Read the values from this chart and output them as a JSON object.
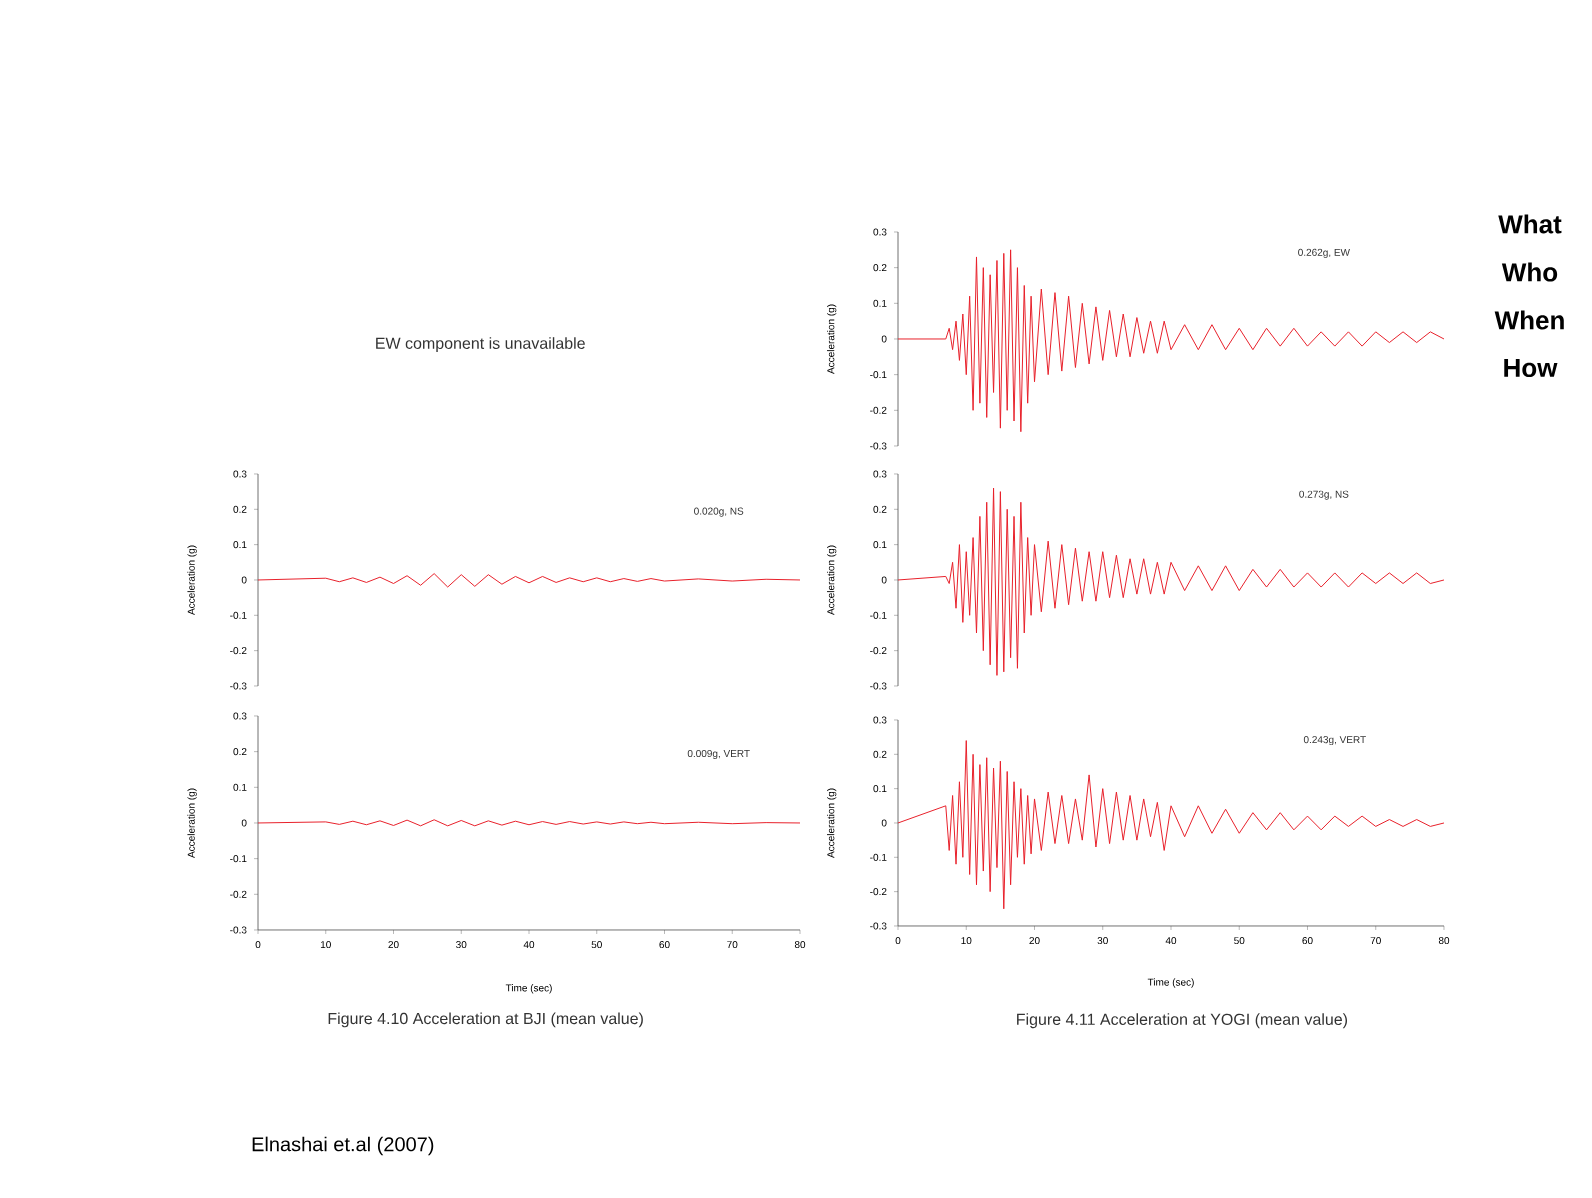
{
  "chart_data": [
    {
      "type": "line",
      "ylabel": "Acceleration (g)",
      "xlim": [
        0,
        80
      ],
      "ylim": [
        -0.3,
        0.3
      ],
      "yticks": [
        0.3,
        0.2,
        0.1,
        0,
        -0.1,
        -0.2,
        -0.3
      ],
      "tick_labels": "y",
      "color": "#e8202a",
      "x": [
        0,
        10,
        12,
        14,
        16,
        18,
        20,
        22,
        24,
        26,
        28,
        30,
        32,
        34,
        36,
        38,
        40,
        42,
        44,
        46,
        48,
        50,
        52,
        54,
        56,
        58,
        60,
        65,
        70,
        75,
        80
      ],
      "values": [
        0,
        0.005,
        -0.005,
        0.006,
        -0.007,
        0.008,
        -0.01,
        0.012,
        -0.015,
        0.018,
        -0.02,
        0.015,
        -0.018,
        0.015,
        -0.012,
        0.01,
        -0.008,
        0.01,
        -0.007,
        0.006,
        -0.005,
        0.006,
        -0.005,
        0.004,
        -0.004,
        0.004,
        -0.003,
        0.003,
        -0.003,
        0.002,
        0
      ],
      "annotations": [
        "0.020g, NS",
        "EW component is unavailable"
      ]
    },
    {
      "type": "line",
      "xlabel": "Time (sec)",
      "ylabel": "Acceleration (g)",
      "xlim": [
        0,
        80
      ],
      "ylim": [
        -0.3,
        0.3
      ],
      "xticks": [
        0,
        10,
        20,
        30,
        40,
        50,
        60,
        70,
        80
      ],
      "yticks": [
        0.3,
        0.2,
        0.1,
        0,
        -0.1,
        -0.2,
        -0.3
      ],
      "color": "#e8202a",
      "x": [
        0,
        10,
        12,
        14,
        16,
        18,
        20,
        22,
        24,
        26,
        28,
        30,
        32,
        34,
        36,
        38,
        40,
        42,
        44,
        46,
        48,
        50,
        52,
        54,
        56,
        58,
        60,
        65,
        70,
        75,
        80
      ],
      "values": [
        0,
        0.003,
        -0.004,
        0.005,
        -0.005,
        0.006,
        -0.007,
        0.008,
        -0.008,
        0.009,
        -0.008,
        0.007,
        -0.008,
        0.006,
        -0.006,
        0.005,
        -0.005,
        0.004,
        -0.004,
        0.004,
        -0.003,
        0.003,
        -0.003,
        0.003,
        -0.002,
        0.002,
        -0.002,
        0.002,
        -0.002,
        0.001,
        0
      ],
      "annotations": [
        "0.009g, VERT",
        "Figure 4.10  Acceleration at BJI (mean value)"
      ]
    },
    {
      "type": "line",
      "ylabel": "Acceleration (g)",
      "xlim": [
        0,
        80
      ],
      "ylim": [
        -0.3,
        0.3
      ],
      "yticks": [
        0.3,
        0.2,
        0.1,
        0,
        -0.1,
        -0.2,
        -0.3
      ],
      "tick_labels": "y",
      "color": "#e8202a",
      "x": [
        0,
        7,
        7.5,
        8,
        8.5,
        9,
        9.5,
        10,
        10.5,
        11,
        11.5,
        12,
        12.5,
        13,
        13.5,
        14,
        14.5,
        15,
        15.5,
        16,
        16.5,
        17,
        17.5,
        18,
        18.5,
        19,
        19.5,
        20,
        21,
        22,
        23,
        24,
        25,
        26,
        27,
        28,
        29,
        30,
        31,
        32,
        33,
        34,
        35,
        36,
        37,
        38,
        39,
        40,
        42,
        44,
        46,
        48,
        50,
        52,
        54,
        56,
        58,
        60,
        62,
        64,
        66,
        68,
        70,
        72,
        74,
        76,
        78,
        80
      ],
      "values": [
        0,
        0,
        0.03,
        -0.03,
        0.05,
        -0.06,
        0.07,
        -0.1,
        0.12,
        -0.2,
        0.23,
        -0.18,
        0.2,
        -0.22,
        0.18,
        -0.15,
        0.22,
        -0.25,
        0.24,
        -0.2,
        0.25,
        -0.23,
        0.2,
        -0.26,
        0.15,
        -0.18,
        0.12,
        -0.12,
        0.14,
        -0.1,
        0.13,
        -0.09,
        0.12,
        -0.08,
        0.1,
        -0.07,
        0.09,
        -0.06,
        0.08,
        -0.05,
        0.07,
        -0.05,
        0.06,
        -0.04,
        0.05,
        -0.04,
        0.05,
        -0.03,
        0.04,
        -0.03,
        0.04,
        -0.03,
        0.03,
        -0.03,
        0.03,
        -0.02,
        0.03,
        -0.02,
        0.02,
        -0.02,
        0.02,
        -0.02,
        0.02,
        -0.01,
        0.02,
        -0.01,
        0.02,
        0
      ],
      "annotations": [
        "0.262g, EW"
      ]
    },
    {
      "type": "line",
      "ylabel": "Acceleration (g)",
      "xlim": [
        0,
        80
      ],
      "ylim": [
        -0.3,
        0.3
      ],
      "yticks": [
        0.3,
        0.2,
        0.1,
        0,
        -0.1,
        -0.2,
        -0.3
      ],
      "tick_labels": "y",
      "color": "#e8202a",
      "x": [
        0,
        7,
        7.5,
        8,
        8.5,
        9,
        9.5,
        10,
        10.5,
        11,
        11.5,
        12,
        12.5,
        13,
        13.5,
        14,
        14.5,
        15,
        15.5,
        16,
        16.5,
        17,
        17.5,
        18,
        18.5,
        19,
        19.5,
        20,
        21,
        22,
        23,
        24,
        25,
        26,
        27,
        28,
        29,
        30,
        31,
        32,
        33,
        34,
        35,
        36,
        37,
        38,
        39,
        40,
        42,
        44,
        46,
        48,
        50,
        52,
        54,
        56,
        58,
        60,
        62,
        64,
        66,
        68,
        70,
        72,
        74,
        76,
        78,
        80
      ],
      "values": [
        0,
        0.01,
        -0.01,
        0.05,
        -0.08,
        0.1,
        -0.12,
        0.08,
        -0.1,
        0.12,
        -0.15,
        0.18,
        -0.2,
        0.22,
        -0.24,
        0.26,
        -0.27,
        0.25,
        -0.26,
        0.2,
        -0.22,
        0.18,
        -0.25,
        0.22,
        -0.15,
        0.12,
        -0.1,
        0.1,
        -0.09,
        0.11,
        -0.08,
        0.1,
        -0.07,
        0.09,
        -0.06,
        0.08,
        -0.06,
        0.08,
        -0.05,
        0.07,
        -0.05,
        0.06,
        -0.04,
        0.06,
        -0.04,
        0.05,
        -0.04,
        0.05,
        -0.03,
        0.04,
        -0.03,
        0.04,
        -0.03,
        0.03,
        -0.02,
        0.03,
        -0.02,
        0.02,
        -0.02,
        0.02,
        -0.02,
        0.02,
        -0.01,
        0.02,
        -0.01,
        0.02,
        -0.01,
        0
      ],
      "annotations": [
        "0.273g, NS"
      ]
    },
    {
      "type": "line",
      "xlabel": "Time (sec)",
      "ylabel": "Acceleration (g)",
      "xlim": [
        0,
        80
      ],
      "ylim": [
        -0.3,
        0.3
      ],
      "xticks": [
        0,
        10,
        20,
        30,
        40,
        50,
        60,
        70,
        80
      ],
      "yticks": [
        0.3,
        0.2,
        0.1,
        0,
        -0.1,
        -0.2,
        -0.3
      ],
      "color": "#e8202a",
      "x": [
        0,
        7,
        7.5,
        8,
        8.5,
        9,
        9.5,
        10,
        10.5,
        11,
        11.5,
        12,
        12.5,
        13,
        13.5,
        14,
        14.5,
        15,
        15.5,
        16,
        16.5,
        17,
        17.5,
        18,
        18.5,
        19,
        19.5,
        20,
        21,
        22,
        23,
        24,
        25,
        26,
        27,
        28,
        29,
        30,
        31,
        32,
        33,
        34,
        35,
        36,
        37,
        38,
        39,
        40,
        42,
        44,
        46,
        48,
        50,
        52,
        54,
        56,
        58,
        60,
        62,
        64,
        66,
        68,
        70,
        72,
        74,
        76,
        78,
        80
      ],
      "values": [
        0,
        0.05,
        -0.08,
        0.08,
        -0.12,
        0.12,
        -0.1,
        0.24,
        -0.15,
        0.2,
        -0.18,
        0.17,
        -0.14,
        0.19,
        -0.2,
        0.16,
        -0.13,
        0.18,
        -0.25,
        0.15,
        -0.18,
        0.12,
        -0.1,
        0.1,
        -0.12,
        0.08,
        -0.09,
        0.07,
        -0.08,
        0.09,
        -0.06,
        0.08,
        -0.06,
        0.07,
        -0.05,
        0.14,
        -0.07,
        0.1,
        -0.06,
        0.09,
        -0.05,
        0.08,
        -0.05,
        0.07,
        -0.04,
        0.06,
        -0.08,
        0.05,
        -0.04,
        0.05,
        -0.03,
        0.04,
        -0.03,
        0.03,
        -0.02,
        0.03,
        -0.02,
        0.02,
        -0.02,
        0.02,
        -0.01,
        0.02,
        -0.01,
        0.01,
        -0.01,
        0.01,
        -0.01,
        0
      ],
      "annotations": [
        "0.243g, VERT",
        "Figure 4.11  Acceleration at YOGI (mean value)"
      ]
    },
    {
      "type": "other",
      "annotations": [
        "What",
        "Who",
        "When",
        "How",
        "Elnashai et.al (2007)"
      ]
    }
  ]
}
